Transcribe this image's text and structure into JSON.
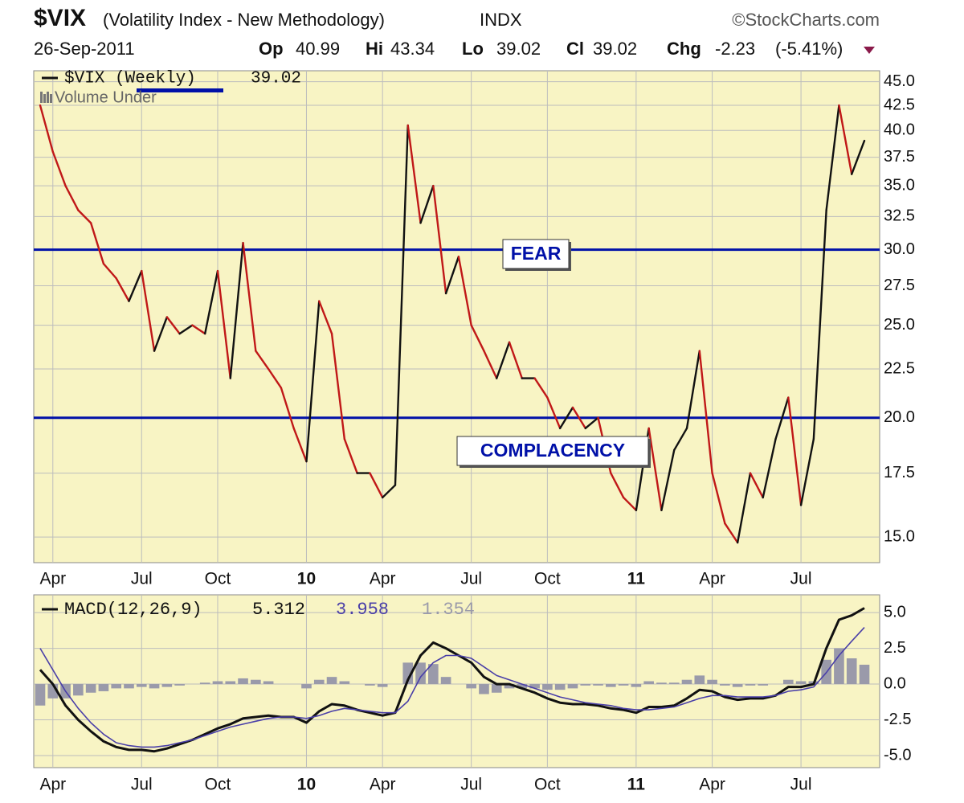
{
  "header": {
    "symbol": "$VIX",
    "description": "(Volatility Index - New Methodology)",
    "exchange": "INDX",
    "source": "©StockCharts.com",
    "date": "26-Sep-2011",
    "op_label": "Op",
    "op": "40.99",
    "hi_label": "Hi",
    "hi": "43.34",
    "lo_label": "Lo",
    "lo": "39.02",
    "cl_label": "Cl",
    "cl": "39.02",
    "chg_label": "Chg",
    "chg": "-2.23",
    "chg_pct": "(-5.41%)"
  },
  "chart_data": [
    {
      "type": "line",
      "log_scale": true,
      "grid": true,
      "categories": [
        null,
        "Apr",
        null,
        null,
        null,
        null,
        null,
        null,
        "Jul",
        null,
        null,
        null,
        null,
        null,
        "Oct",
        null,
        null,
        null,
        null,
        null,
        null,
        "10",
        null,
        null,
        null,
        null,
        null,
        "Apr",
        null,
        null,
        null,
        null,
        null,
        null,
        "Jul",
        null,
        null,
        null,
        null,
        null,
        "Oct",
        null,
        null,
        null,
        null,
        null,
        null,
        "11",
        null,
        null,
        null,
        null,
        null,
        "Apr",
        null,
        null,
        null,
        null,
        null,
        null,
        "Jul",
        null,
        null,
        null,
        null,
        null
      ],
      "series": [
        {
          "name": "$VIX (Weekly)",
          "value_label": "39.02",
          "up_color": "#111111",
          "down_color": "#c01818",
          "values": [
            42.5,
            38,
            35,
            33,
            32,
            29,
            28,
            26.5,
            28.5,
            23.5,
            25.5,
            24.5,
            25,
            24.5,
            28.5,
            22,
            30.5,
            23.5,
            22.5,
            21.5,
            19.5,
            18,
            26.5,
            24.5,
            19,
            17.5,
            17.5,
            16.5,
            17,
            40.5,
            32,
            35,
            27,
            29.5,
            25,
            23.5,
            22,
            24,
            22,
            22,
            21,
            19.5,
            20.5,
            19.5,
            20,
            17.5,
            16.5,
            16,
            19.5,
            16,
            18.5,
            19.5,
            23.5,
            17.5,
            15.5,
            14.8,
            17.5,
            16.5,
            19,
            21,
            16.2,
            19,
            33,
            42.5,
            36,
            39.02
          ]
        }
      ],
      "overlay_label": "Volume Under",
      "hlines": [
        {
          "value": 30,
          "label": "FEAR",
          "color": "#0010a8"
        },
        {
          "value": 20,
          "label": "COMPLACENCY",
          "color": "#0010a8"
        }
      ],
      "ylim": [
        14.1,
        46.2
      ],
      "yticks": [
        {
          "value": 15,
          "label": "15.0"
        },
        17.5,
        {
          "value": 20,
          "label": "20.0"
        },
        22.5,
        {
          "value": 25,
          "label": "25.0"
        },
        27.5,
        {
          "value": 30,
          "label": "30.0"
        },
        32.5,
        {
          "value": 35,
          "label": "35.0"
        },
        37.5,
        {
          "value": 40,
          "label": "40.0"
        },
        42.5,
        {
          "value": 45,
          "label": "45.0"
        }
      ]
    },
    {
      "type": "macd",
      "grid": true,
      "categories": [
        null,
        "Apr",
        null,
        null,
        null,
        null,
        null,
        null,
        "Jul",
        null,
        null,
        null,
        null,
        null,
        "Oct",
        null,
        null,
        null,
        null,
        null,
        null,
        "10",
        null,
        null,
        null,
        null,
        null,
        "Apr",
        null,
        null,
        null,
        null,
        null,
        null,
        "Jul",
        null,
        null,
        null,
        null,
        null,
        "Oct",
        null,
        null,
        null,
        null,
        null,
        null,
        "11",
        null,
        null,
        null,
        null,
        null,
        "Apr",
        null,
        null,
        null,
        null,
        null,
        null,
        "Jul",
        null,
        null,
        null,
        null,
        null
      ],
      "series": [
        {
          "name": "MACD(12,26,9)",
          "value_label": "5.312",
          "color": "#111111",
          "kind": "line",
          "values": [
            1.0,
            0,
            -1.5,
            -2.5,
            -3.3,
            -4.0,
            -4.4,
            -4.6,
            -4.6,
            -4.7,
            -4.5,
            -4.2,
            -3.9,
            -3.5,
            -3.1,
            -2.8,
            -2.4,
            -2.3,
            -2.2,
            -2.3,
            -2.3,
            -2.7,
            -1.9,
            -1.4,
            -1.5,
            -1.8,
            -2.0,
            -2.2,
            -2.0,
            0.3,
            2.0,
            2.9,
            2.5,
            2.0,
            1.5,
            0.5,
            0,
            0,
            -0.3,
            -0.6,
            -1.0,
            -1.3,
            -1.4,
            -1.4,
            -1.5,
            -1.7,
            -1.8,
            -2.0,
            -1.6,
            -1.6,
            -1.5,
            -1.0,
            -0.4,
            -0.5,
            -0.9,
            -1.1,
            -1.0,
            -1.0,
            -0.8,
            -0.2,
            -0.2,
            0,
            2.5,
            4.5,
            4.8,
            5.312
          ]
        },
        {
          "value_label": "3.958",
          "color": "#4a3fa8",
          "kind": "line",
          "values": [
            2.5,
            1.0,
            -0.5,
            -1.7,
            -2.7,
            -3.5,
            -4.1,
            -4.3,
            -4.4,
            -4.4,
            -4.3,
            -4.1,
            -3.9,
            -3.6,
            -3.3,
            -3.0,
            -2.8,
            -2.6,
            -2.4,
            -2.3,
            -2.3,
            -2.4,
            -2.2,
            -1.9,
            -1.7,
            -1.8,
            -1.9,
            -2.0,
            -2.0,
            -1.2,
            0.5,
            1.5,
            2.0,
            2.0,
            1.8,
            1.2,
            0.6,
            0.3,
            0.0,
            -0.3,
            -0.6,
            -0.9,
            -1.1,
            -1.3,
            -1.4,
            -1.5,
            -1.7,
            -1.8,
            -1.8,
            -1.7,
            -1.6,
            -1.3,
            -1.0,
            -0.8,
            -0.8,
            -0.9,
            -0.9,
            -0.9,
            -0.8,
            -0.5,
            -0.4,
            -0.2,
            0.8,
            2.0,
            3.0,
            3.958
          ]
        },
        {
          "value_label": "1.354",
          "color": "#9a9aaa",
          "kind": "bar",
          "values": [
            -1.5,
            -1.0,
            -1.0,
            -0.8,
            -0.6,
            -0.5,
            -0.3,
            -0.3,
            -0.2,
            -0.3,
            -0.2,
            -0.1,
            0,
            0.1,
            0.2,
            0.2,
            0.4,
            0.3,
            0.2,
            0,
            0,
            -0.3,
            0.3,
            0.5,
            0.2,
            0,
            -0.1,
            -0.2,
            0,
            1.5,
            1.5,
            1.4,
            0.5,
            0,
            -0.3,
            -0.7,
            -0.6,
            -0.3,
            -0.3,
            -0.3,
            -0.4,
            -0.4,
            -0.3,
            -0.1,
            -0.1,
            -0.2,
            -0.1,
            -0.2,
            0.2,
            0.1,
            0.1,
            0.3,
            0.6,
            0.3,
            -0.1,
            -0.2,
            -0.1,
            -0.1,
            0,
            0.3,
            0.2,
            0.2,
            1.7,
            2.5,
            1.8,
            1.354
          ]
        }
      ],
      "ylim": [
        -5.84,
        6.24
      ],
      "yticks": [
        {
          "value": -5,
          "label": "-5.0"
        },
        -2.5,
        {
          "value": 0,
          "label": "0.0"
        },
        2.5,
        {
          "value": 5,
          "label": "5.0"
        }
      ]
    }
  ]
}
